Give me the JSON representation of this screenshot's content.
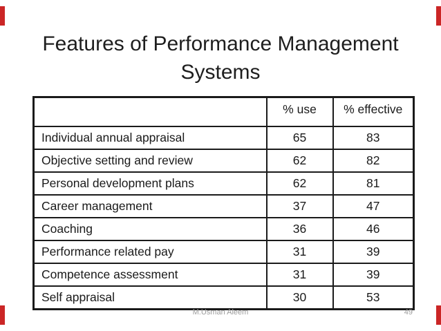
{
  "slide": {
    "title": {
      "line1": "Features of Performance Management",
      "line2": "Systems"
    },
    "footer": {
      "author": "M.Usman Aleem",
      "page_number": "49"
    }
  },
  "table": {
    "column_headers": [
      "",
      "% use",
      "% effective"
    ],
    "rows": [
      [
        "Individual annual appraisal",
        "65",
        "83"
      ],
      [
        "Objective setting and review",
        "62",
        "82"
      ],
      [
        "Personal development plans",
        "62",
        "81"
      ],
      [
        "Career management",
        "37",
        "47"
      ],
      [
        "Coaching",
        "36",
        "46"
      ],
      [
        "Performance related pay",
        "31",
        "39"
      ],
      [
        "Competence assessment",
        "31",
        "39"
      ],
      [
        "Self appraisal",
        "30",
        "53"
      ]
    ]
  },
  "chart_data": {
    "type": "table",
    "title": "Features of Performance Management Systems",
    "categories": [
      "Individual annual appraisal",
      "Objective setting and review",
      "Personal development plans",
      "Career management",
      "Coaching",
      "Performance related pay",
      "Competence assessment",
      "Self appraisal"
    ],
    "series": [
      {
        "name": "% use",
        "values": [
          65,
          62,
          62,
          37,
          36,
          31,
          31,
          30
        ]
      },
      {
        "name": "% effective",
        "values": [
          83,
          82,
          81,
          47,
          46,
          39,
          39,
          53
        ]
      }
    ]
  },
  "colors": {
    "edge_mark_red": "#cb2626",
    "table_border": "#1a1a1a",
    "title_text": "#1e1e1e",
    "footer_gray": "#9b9b9b",
    "background": "#ffffff"
  }
}
